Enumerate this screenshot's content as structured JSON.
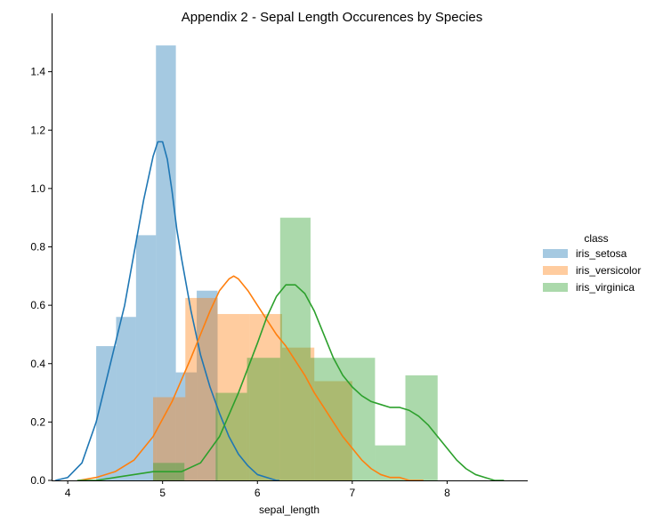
{
  "chart_data": {
    "type": "histogram",
    "title": "Appendix 2 - Sepal Length Occurences by Species",
    "xlabel": "sepal_length",
    "ylabel": "",
    "xlim": [
      3.83,
      8.85
    ],
    "ylim": [
      0,
      1.6
    ],
    "x_ticks": [
      4,
      5,
      6,
      7,
      8
    ],
    "y_ticks": [
      0.0,
      0.2,
      0.4,
      0.6,
      0.8,
      1.0,
      1.2,
      1.4
    ],
    "grid": false,
    "legend": {
      "title": "class",
      "placement": "right",
      "entries": [
        "iris_setosa",
        "iris_versicolor",
        "iris_virginica"
      ]
    },
    "series": [
      {
        "name": "iris_setosa",
        "color": "#1f77b4",
        "histogram": [
          {
            "x0": 4.3,
            "x1": 4.51,
            "density": 0.46
          },
          {
            "x0": 4.51,
            "x1": 4.72,
            "density": 0.56
          },
          {
            "x0": 4.72,
            "x1": 4.93,
            "density": 0.84
          },
          {
            "x0": 4.93,
            "x1": 5.14,
            "density": 1.49
          },
          {
            "x0": 5.14,
            "x1": 5.36,
            "density": 0.37
          },
          {
            "x0": 5.36,
            "x1": 5.58,
            "density": 0.65
          }
        ],
        "kde_x": [
          3.87,
          4.0,
          4.15,
          4.3,
          4.45,
          4.6,
          4.7,
          4.8,
          4.9,
          4.95,
          5.0,
          5.05,
          5.1,
          5.15,
          5.2,
          5.3,
          5.4,
          5.5,
          5.6,
          5.7,
          5.8,
          5.9,
          6.0,
          6.1,
          6.2,
          6.23
        ],
        "kde_y": [
          0.0,
          0.01,
          0.06,
          0.2,
          0.4,
          0.6,
          0.78,
          0.96,
          1.11,
          1.16,
          1.16,
          1.1,
          0.99,
          0.86,
          0.76,
          0.58,
          0.43,
          0.32,
          0.23,
          0.15,
          0.09,
          0.05,
          0.02,
          0.01,
          0.0,
          0.0
        ]
      },
      {
        "name": "iris_versicolor",
        "color": "#ff7f0e",
        "histogram": [
          {
            "x0": 4.9,
            "x1": 5.24,
            "density": 0.285
          },
          {
            "x0": 5.24,
            "x1": 5.58,
            "density": 0.625
          },
          {
            "x0": 5.58,
            "x1": 5.92,
            "density": 0.57
          },
          {
            "x0": 5.92,
            "x1": 6.26,
            "density": 0.57
          },
          {
            "x0": 6.26,
            "x1": 6.6,
            "density": 0.455
          },
          {
            "x0": 6.6,
            "x1": 7.0,
            "density": 0.34
          }
        ],
        "kde_x": [
          4.12,
          4.3,
          4.5,
          4.7,
          4.9,
          5.1,
          5.3,
          5.5,
          5.6,
          5.7,
          5.75,
          5.8,
          5.9,
          6.0,
          6.1,
          6.2,
          6.3,
          6.4,
          6.5,
          6.6,
          6.7,
          6.8,
          6.9,
          7.0,
          7.1,
          7.2,
          7.3,
          7.4,
          7.5,
          7.6,
          7.7,
          7.75
        ],
        "kde_y": [
          0.0,
          0.01,
          0.03,
          0.07,
          0.15,
          0.27,
          0.42,
          0.58,
          0.65,
          0.69,
          0.7,
          0.69,
          0.65,
          0.6,
          0.55,
          0.5,
          0.46,
          0.41,
          0.36,
          0.3,
          0.25,
          0.2,
          0.15,
          0.11,
          0.07,
          0.04,
          0.02,
          0.01,
          0.01,
          0.0,
          0.0,
          0.0
        ]
      },
      {
        "name": "iris_virginica",
        "color": "#2ca02c",
        "histogram": [
          {
            "x0": 4.9,
            "x1": 5.23,
            "density": 0.06
          },
          {
            "x0": 5.56,
            "x1": 5.89,
            "density": 0.3
          },
          {
            "x0": 5.89,
            "x1": 6.24,
            "density": 0.42
          },
          {
            "x0": 6.24,
            "x1": 6.56,
            "density": 0.9
          },
          {
            "x0": 6.56,
            "x1": 7.24,
            "density": 0.42
          },
          {
            "x0": 7.24,
            "x1": 7.56,
            "density": 0.12
          },
          {
            "x0": 7.56,
            "x1": 7.9,
            "density": 0.36
          }
        ],
        "kde_x": [
          4.1,
          4.3,
          4.5,
          4.7,
          4.9,
          5.1,
          5.2,
          5.4,
          5.6,
          5.8,
          6.0,
          6.1,
          6.2,
          6.3,
          6.4,
          6.5,
          6.6,
          6.7,
          6.8,
          6.9,
          7.0,
          7.1,
          7.2,
          7.3,
          7.4,
          7.5,
          7.6,
          7.7,
          7.8,
          7.9,
          8.0,
          8.1,
          8.2,
          8.3,
          8.4,
          8.5,
          8.6
        ],
        "kde_y": [
          0.0,
          0.0,
          0.01,
          0.02,
          0.03,
          0.03,
          0.03,
          0.06,
          0.15,
          0.3,
          0.47,
          0.56,
          0.63,
          0.67,
          0.67,
          0.64,
          0.58,
          0.5,
          0.42,
          0.36,
          0.32,
          0.29,
          0.27,
          0.26,
          0.25,
          0.25,
          0.24,
          0.22,
          0.19,
          0.15,
          0.11,
          0.07,
          0.04,
          0.02,
          0.01,
          0.0,
          0.0
        ]
      }
    ]
  }
}
